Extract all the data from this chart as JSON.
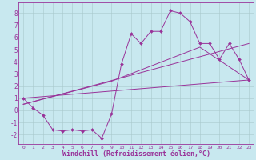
{
  "x_data": [
    0,
    1,
    2,
    3,
    4,
    5,
    6,
    7,
    8,
    9,
    10,
    11,
    12,
    13,
    14,
    15,
    16,
    17,
    18,
    19,
    20,
    21,
    22,
    23
  ],
  "line1": [
    1.0,
    0.2,
    -0.4,
    -1.6,
    -1.7,
    -1.6,
    -1.7,
    -1.6,
    -2.3,
    -0.3,
    3.8,
    6.3,
    5.5,
    6.5,
    6.5,
    8.2,
    8.0,
    7.3,
    5.5,
    5.5,
    4.2,
    5.5,
    4.2,
    2.5
  ],
  "line2_x": [
    0,
    23
  ],
  "line2_y": [
    1.0,
    2.5
  ],
  "line3_x": [
    0,
    23
  ],
  "line3_y": [
    0.5,
    5.5
  ],
  "line4_x": [
    0,
    9,
    18,
    23
  ],
  "line4_y": [
    0.5,
    2.4,
    5.2,
    2.5
  ],
  "line_color": "#993399",
  "bg_color": "#c8e8ef",
  "grid_color": "#a8c8cc",
  "xlabel": "Windchill (Refroidissement éolien,°C)",
  "xlabel_fontsize": 6.0,
  "ylabel_ticks": [
    -2,
    -1,
    0,
    1,
    2,
    3,
    4,
    5,
    6,
    7,
    8
  ],
  "xlim": [
    -0.5,
    23.5
  ],
  "ylim": [
    -2.8,
    8.9
  ],
  "marker": "D",
  "marker_size": 2.0
}
